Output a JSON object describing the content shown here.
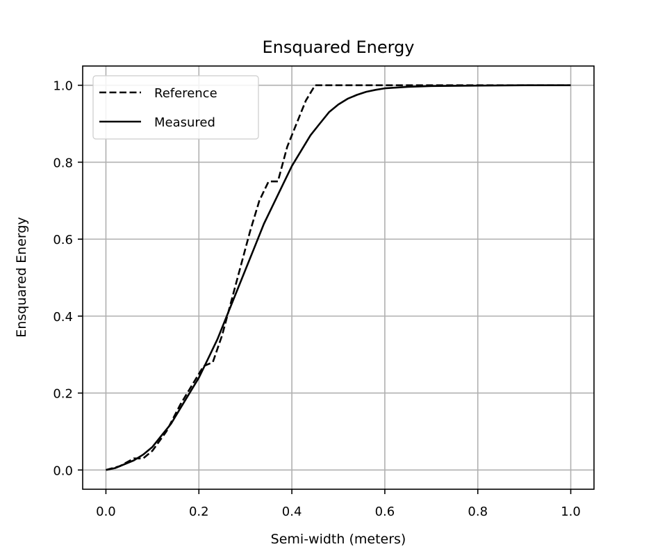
{
  "chart_data": {
    "type": "line",
    "title": "Ensquared Energy",
    "xlabel": "Semi-width (meters)",
    "ylabel": "Ensquared Energy",
    "xlim": [
      -0.05,
      1.05
    ],
    "ylim": [
      -0.05,
      1.05
    ],
    "xticks": [
      "0.0",
      "0.2",
      "0.4",
      "0.6",
      "0.8",
      "1.0"
    ],
    "yticks": [
      "0.0",
      "0.2",
      "0.4",
      "0.6",
      "0.8",
      "1.0"
    ],
    "grid": true,
    "legend_position": "upper-left",
    "series": [
      {
        "name": "Reference",
        "style": "dashed",
        "color": "#000000",
        "x": [
          0.0,
          0.03,
          0.06,
          0.08,
          0.1,
          0.13,
          0.16,
          0.19,
          0.21,
          0.23,
          0.25,
          0.27,
          0.29,
          0.31,
          0.33,
          0.35,
          0.37,
          0.39,
          0.41,
          0.43,
          0.45,
          0.5,
          0.6,
          0.7,
          0.8,
          0.9,
          1.0
        ],
        "y": [
          0.0,
          0.01,
          0.03,
          0.03,
          0.05,
          0.1,
          0.17,
          0.23,
          0.27,
          0.28,
          0.35,
          0.44,
          0.53,
          0.62,
          0.7,
          0.75,
          0.75,
          0.84,
          0.9,
          0.96,
          1.0,
          1.0,
          1.0,
          1.0,
          1.0,
          1.0,
          1.0
        ]
      },
      {
        "name": "Measured",
        "style": "solid",
        "color": "#000000",
        "x": [
          0.0,
          0.02,
          0.04,
          0.06,
          0.08,
          0.1,
          0.12,
          0.14,
          0.16,
          0.18,
          0.2,
          0.22,
          0.24,
          0.26,
          0.28,
          0.3,
          0.32,
          0.34,
          0.36,
          0.38,
          0.4,
          0.42,
          0.44,
          0.46,
          0.48,
          0.5,
          0.52,
          0.54,
          0.56,
          0.58,
          0.6,
          0.65,
          0.7,
          0.8,
          0.9,
          1.0
        ],
        "y": [
          0.0,
          0.005,
          0.015,
          0.025,
          0.04,
          0.06,
          0.09,
          0.12,
          0.16,
          0.2,
          0.24,
          0.29,
          0.34,
          0.4,
          0.46,
          0.52,
          0.58,
          0.64,
          0.69,
          0.74,
          0.79,
          0.83,
          0.87,
          0.9,
          0.93,
          0.95,
          0.965,
          0.975,
          0.983,
          0.988,
          0.992,
          0.996,
          0.998,
          0.999,
          1.0,
          1.0
        ]
      }
    ]
  }
}
